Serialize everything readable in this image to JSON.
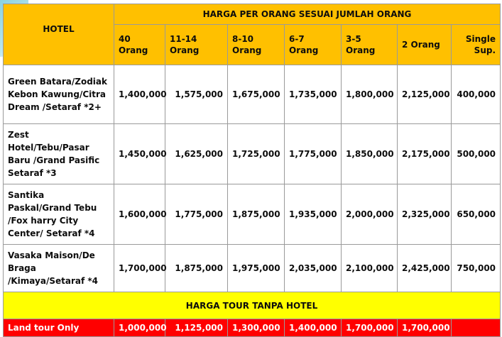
{
  "table": {
    "hotel_header": "HOTEL",
    "group_header": "HARGA PER ORANG SESUAI JUMLAH ORANG",
    "columns": [
      "40 Orang",
      "11-14 Orang",
      "8-10 Orang",
      "6-7 Orang",
      "3-5 Orang",
      "2 Orang",
      "Single Sup."
    ],
    "rows": [
      {
        "hotel": "Green Batara/Zodiak Kebon Kawung/Citra Dream /Setaraf *2+",
        "prices": [
          "1,400,000",
          "1,575,000",
          "1,675,000",
          "1,735,000",
          "1,800,000",
          "2,125,000",
          "400,000"
        ]
      },
      {
        "hotel": "Zest Hotel/Tebu/Pasar Baru /Grand Pasific Setaraf *3",
        "prices": [
          "1,450,000",
          "1,625,000",
          "1,725,000",
          "1,775,000",
          "1,850,000",
          "2,175,000",
          "500,000"
        ]
      },
      {
        "hotel": "Santika Paskal/Grand Tebu /Fox harry City Center/ Setaraf *4",
        "prices": [
          "1,600,000",
          "1,775,000",
          "1,875,000",
          "1,935,000",
          "2,000,000",
          "2,325,000",
          "650,000"
        ]
      },
      {
        "hotel": "Vasaka Maison/De Braga /Kimaya/Setaraf *4",
        "prices": [
          "1,700,000",
          "1,875,000",
          "1,975,000",
          "2,035,000",
          "2,100,000",
          "2,425,000",
          "750,000"
        ]
      }
    ],
    "no_hotel_header": "HARGA TOUR TANPA HOTEL",
    "land_tour": {
      "label": "Land tour Only",
      "prices": [
        "1,000,000",
        "1,125,000",
        "1,300,000",
        "1,400,000",
        "1,700,000",
        "1,700,000",
        ""
      ]
    }
  },
  "colors": {
    "header": "#ffc000",
    "no_hotel_band": "#ffff00",
    "land_tour_band": "#ff0000"
  }
}
